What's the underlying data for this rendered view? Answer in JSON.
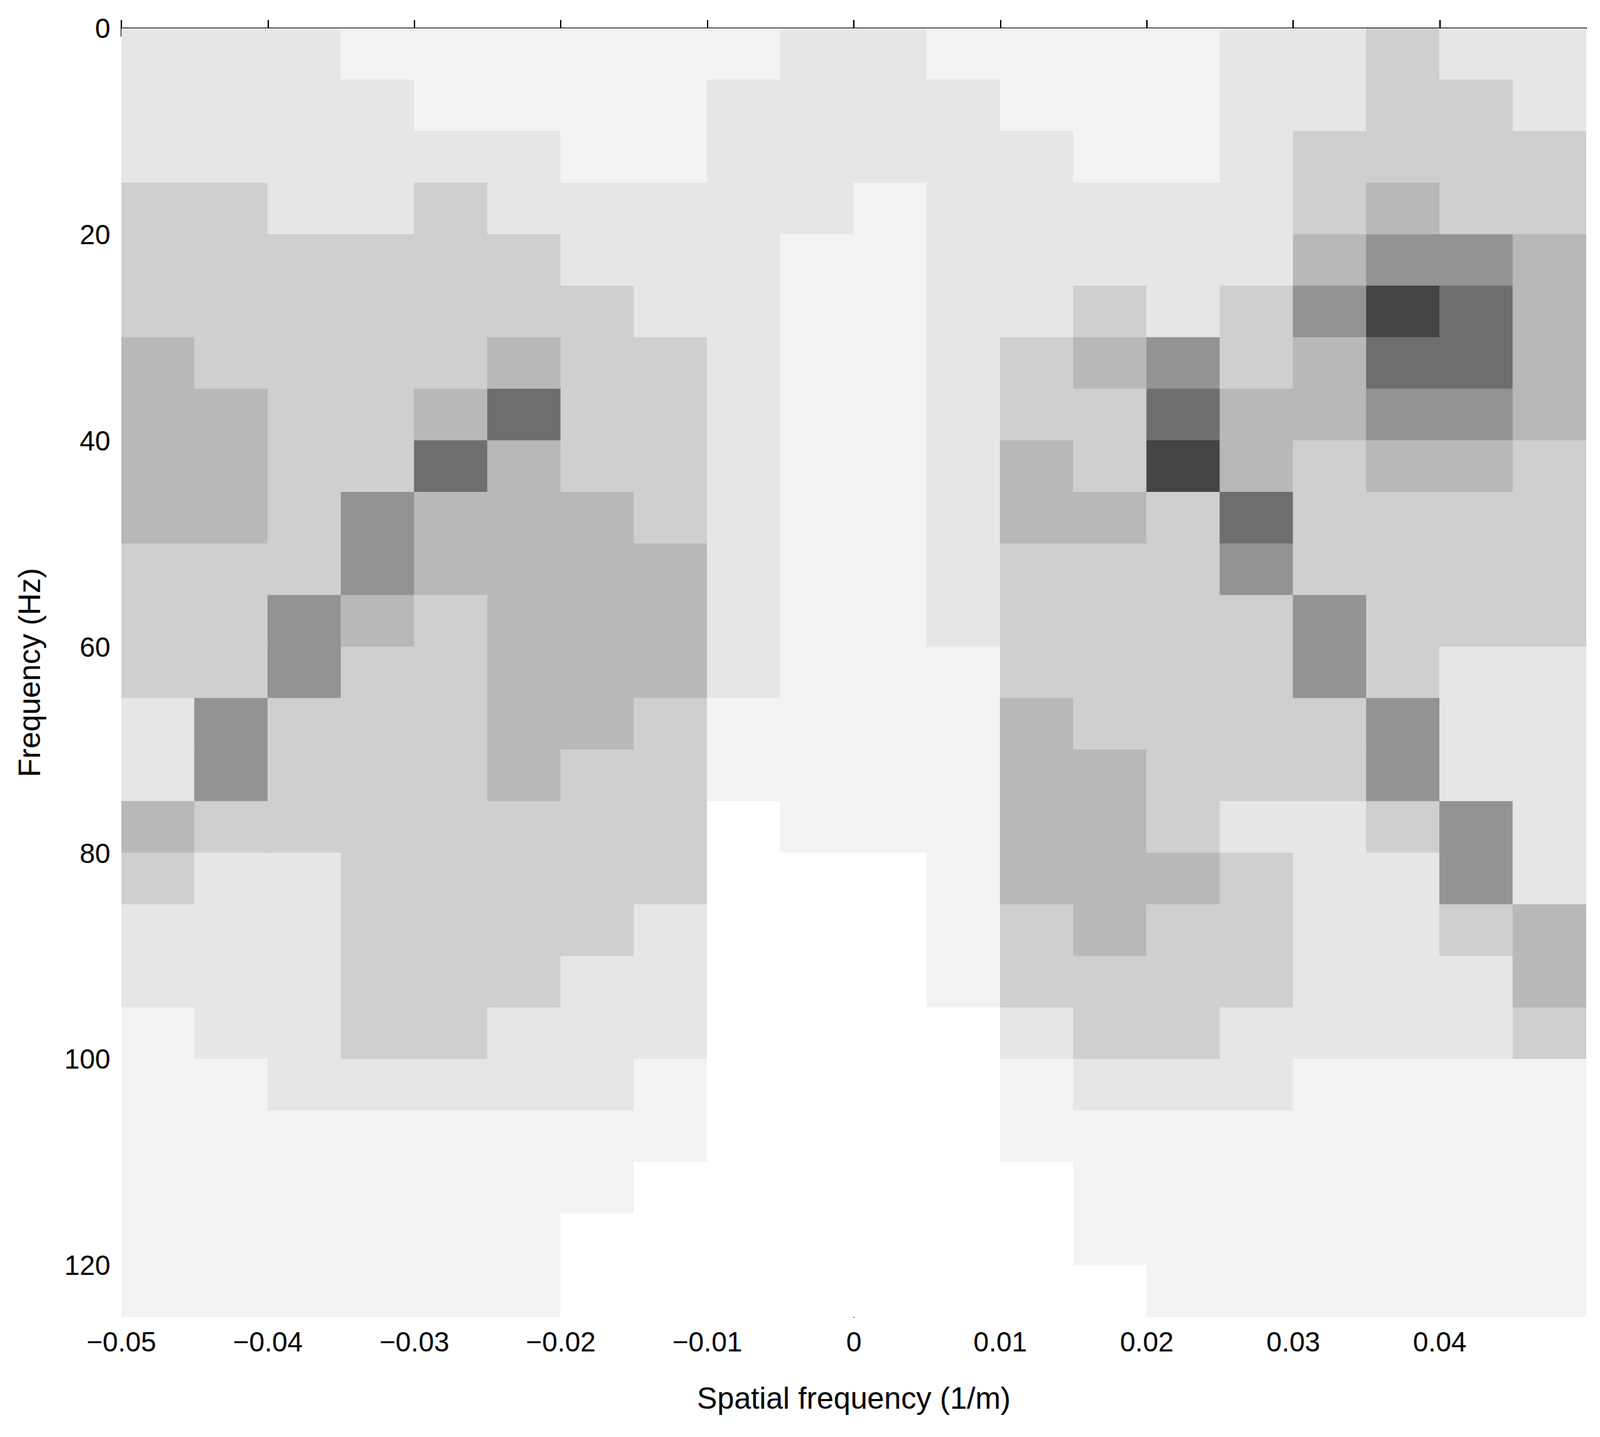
{
  "chart_data": {
    "type": "heatmap",
    "x_label": "Spatial frequency (1/m)",
    "y_label": "Frequency (Hz)",
    "xlim": [
      -0.05,
      0.05
    ],
    "ylim": [
      0,
      125
    ],
    "xticks": [
      {
        "value": -0.05,
        "label": "−0.05"
      },
      {
        "value": -0.04,
        "label": "−0.04"
      },
      {
        "value": -0.03,
        "label": "−0.03"
      },
      {
        "value": -0.02,
        "label": "−0.02"
      },
      {
        "value": -0.01,
        "label": "−0.01"
      },
      0,
      0.01,
      0.02,
      0.03,
      0.04
    ],
    "yticks": [
      0,
      20,
      40,
      60,
      80,
      100,
      120
    ],
    "zlim": [
      0,
      8
    ],
    "x": [
      -0.0475,
      -0.0425,
      -0.0375,
      -0.0325,
      -0.0275,
      -0.0225,
      -0.0175,
      -0.0125,
      -0.0075,
      -0.0025,
      0.0025,
      0.0075,
      0.0125,
      0.0175,
      0.0225,
      0.0275,
      0.0325,
      0.0375,
      0.0425,
      0.0475
    ],
    "y": [
      2.5,
      7.5,
      12.5,
      17.5,
      22.5,
      27.5,
      32.5,
      37.5,
      42.5,
      47.5,
      52.5,
      57.5,
      62.5,
      67.5,
      72.5,
      77.5,
      82.5,
      87.5,
      92.5,
      97.5,
      102.5,
      107.5,
      112.5,
      117.5,
      122.5
    ],
    "values": [
      [
        2,
        2,
        2,
        1,
        1,
        1,
        1,
        1,
        1,
        2,
        2,
        1,
        1,
        1,
        1,
        2,
        2,
        3,
        2,
        2
      ],
      [
        2,
        2,
        2,
        2,
        1,
        1,
        1,
        1,
        2,
        2,
        2,
        2,
        1,
        1,
        1,
        2,
        2,
        3,
        3,
        2
      ],
      [
        2,
        2,
        2,
        2,
        2,
        2,
        1,
        1,
        2,
        2,
        2,
        2,
        2,
        1,
        1,
        2,
        3,
        3,
        3,
        3
      ],
      [
        3,
        3,
        2,
        2,
        3,
        2,
        2,
        2,
        2,
        2,
        1,
        2,
        2,
        2,
        2,
        2,
        3,
        4,
        3,
        3
      ],
      [
        3,
        3,
        3,
        3,
        3,
        3,
        2,
        2,
        2,
        1,
        1,
        2,
        2,
        2,
        2,
        2,
        4,
        5,
        5,
        4
      ],
      [
        3,
        3,
        3,
        3,
        3,
        3,
        3,
        2,
        2,
        1,
        1,
        2,
        2,
        3,
        2,
        3,
        5,
        7,
        6,
        4
      ],
      [
        4,
        3,
        3,
        3,
        3,
        4,
        3,
        3,
        2,
        1,
        1,
        2,
        3,
        4,
        5,
        3,
        4,
        6,
        6,
        4
      ],
      [
        4,
        4,
        3,
        3,
        4,
        6,
        3,
        3,
        2,
        1,
        1,
        2,
        3,
        3,
        6,
        4,
        4,
        5,
        5,
        4
      ],
      [
        4,
        4,
        3,
        3,
        6,
        4,
        3,
        3,
        2,
        1,
        1,
        2,
        4,
        3,
        7,
        4,
        3,
        4,
        4,
        3
      ],
      [
        4,
        4,
        3,
        5,
        4,
        4,
        4,
        3,
        2,
        1,
        1,
        2,
        4,
        4,
        3,
        6,
        3,
        3,
        3,
        3
      ],
      [
        3,
        3,
        3,
        5,
        4,
        4,
        4,
        4,
        2,
        1,
        1,
        2,
        3,
        3,
        3,
        5,
        3,
        3,
        3,
        3
      ],
      [
        3,
        3,
        5,
        4,
        3,
        4,
        4,
        4,
        2,
        1,
        1,
        2,
        3,
        3,
        3,
        3,
        5,
        3,
        3,
        3
      ],
      [
        3,
        3,
        5,
        3,
        3,
        4,
        4,
        4,
        2,
        1,
        1,
        1,
        3,
        3,
        3,
        3,
        5,
        3,
        2,
        2
      ],
      [
        2,
        5,
        3,
        3,
        3,
        4,
        4,
        3,
        1,
        1,
        1,
        1,
        4,
        3,
        3,
        3,
        3,
        5,
        2,
        2
      ],
      [
        2,
        5,
        3,
        3,
        3,
        4,
        3,
        3,
        1,
        1,
        1,
        1,
        4,
        4,
        3,
        3,
        3,
        5,
        2,
        2
      ],
      [
        4,
        3,
        3,
        3,
        3,
        3,
        3,
        3,
        0,
        1,
        1,
        1,
        4,
        4,
        3,
        2,
        2,
        3,
        5,
        2
      ],
      [
        3,
        2,
        2,
        3,
        3,
        3,
        3,
        3,
        0,
        0,
        0,
        1,
        4,
        4,
        4,
        3,
        2,
        2,
        5,
        2
      ],
      [
        2,
        2,
        2,
        3,
        3,
        3,
        3,
        2,
        0,
        0,
        0,
        1,
        3,
        4,
        3,
        3,
        2,
        2,
        3,
        4
      ],
      [
        2,
        2,
        2,
        3,
        3,
        3,
        2,
        2,
        0,
        0,
        0,
        1,
        3,
        3,
        3,
        3,
        2,
        2,
        2,
        4
      ],
      [
        1,
        2,
        2,
        3,
        3,
        2,
        2,
        2,
        0,
        0,
        0,
        0,
        2,
        3,
        3,
        2,
        2,
        2,
        2,
        3
      ],
      [
        1,
        1,
        2,
        2,
        2,
        2,
        2,
        1,
        0,
        0,
        0,
        0,
        1,
        2,
        2,
        2,
        1,
        1,
        1,
        1
      ],
      [
        1,
        1,
        1,
        1,
        1,
        1,
        1,
        1,
        0,
        0,
        0,
        0,
        1,
        1,
        1,
        1,
        1,
        1,
        1,
        1
      ],
      [
        1,
        1,
        1,
        1,
        1,
        1,
        1,
        0,
        0,
        0,
        0,
        0,
        0,
        1,
        1,
        1,
        1,
        1,
        1,
        1
      ],
      [
        1,
        1,
        1,
        1,
        1,
        1,
        0,
        0,
        0,
        0,
        0,
        0,
        0,
        1,
        1,
        1,
        1,
        1,
        1,
        1
      ],
      [
        1,
        1,
        1,
        1,
        1,
        1,
        0,
        0,
        0,
        0,
        0,
        0,
        0,
        0,
        1,
        1,
        1,
        1,
        1,
        1
      ]
    ]
  }
}
